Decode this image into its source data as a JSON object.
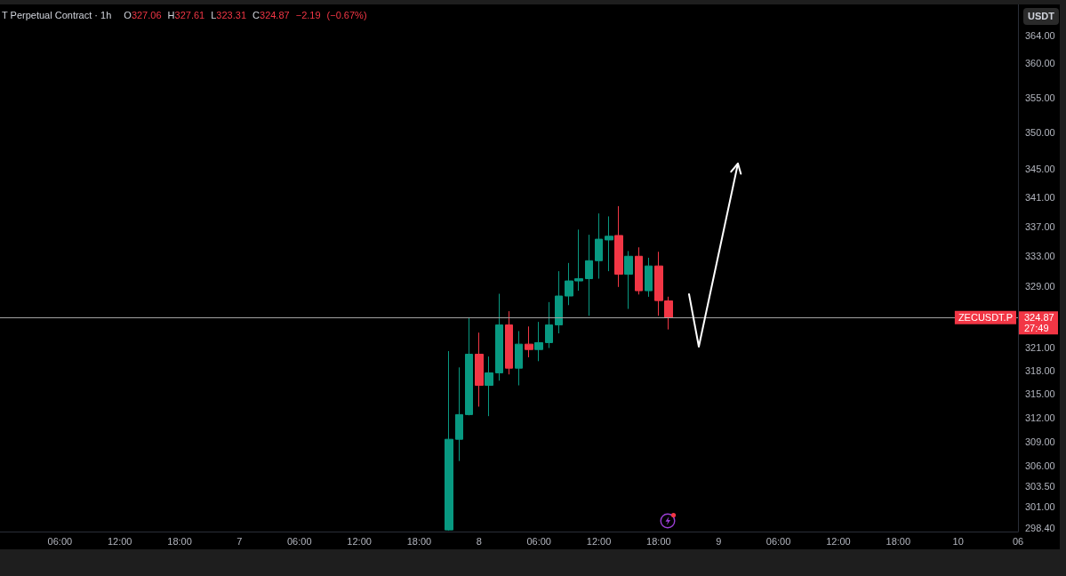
{
  "chart_data": {
    "type": "candlestick",
    "title": "T Perpetual Contract · 1h",
    "subtitle": "O327.06 H327.61 L323.31 C324.87 −2.19 (−0.67%)",
    "ylabel": "USDT",
    "x": [
      "--04-07T21:00",
      "--04-07T22:00",
      "--04-07T23:00",
      "--04-08T00:00",
      "--04-08T01:00",
      "--04-08T02:00",
      "--04-08T03:00",
      "--04-08T04:00",
      "--04-08T05:00",
      "--04-08T06:00",
      "--04-08T07:00",
      "--04-08T08:00",
      "--04-08T09:00",
      "--04-08T10:00",
      "--04-08T11:00",
      "--04-08T12:00",
      "--04-08T13:00",
      "--04-08T14:00",
      "--04-08T15:00",
      "--04-08T16:00",
      "--04-08T17:00",
      "--04-08T18:00",
      "--04-08T19:00"
    ],
    "ohlc": [
      [
        298.2,
        320.5,
        298.1,
        309.3
      ],
      [
        309.3,
        318.4,
        306.6,
        312.4
      ],
      [
        312.4,
        324.9,
        312.3,
        320.1
      ],
      [
        320.1,
        322.9,
        313.4,
        316.1
      ],
      [
        316.1,
        319.8,
        312.2,
        317.7
      ],
      [
        317.7,
        328.0,
        316.7,
        323.9
      ],
      [
        323.9,
        325.7,
        317.5,
        318.3
      ],
      [
        318.3,
        323.1,
        316.1,
        321.4
      ],
      [
        321.4,
        323.7,
        319.7,
        320.7
      ],
      [
        320.7,
        324.3,
        319.2,
        321.6
      ],
      [
        321.6,
        326.9,
        320.9,
        323.9
      ],
      [
        323.9,
        331.0,
        322.8,
        327.7
      ],
      [
        327.7,
        332.1,
        326.5,
        329.7
      ],
      [
        329.7,
        336.6,
        328.4,
        330.0
      ],
      [
        330.0,
        335.9,
        325.1,
        332.4
      ],
      [
        332.4,
        338.8,
        330.0,
        335.3
      ],
      [
        335.2,
        338.4,
        331.0,
        335.7
      ],
      [
        335.8,
        339.8,
        328.9,
        330.6
      ],
      [
        330.6,
        333.7,
        326.0,
        333.0
      ],
      [
        333.0,
        334.2,
        327.9,
        328.4
      ],
      [
        328.4,
        332.8,
        327.6,
        331.7
      ],
      [
        331.7,
        333.6,
        325.1,
        327.1
      ],
      [
        327.06,
        327.61,
        323.31,
        324.87
      ]
    ],
    "colors": [
      "#089981",
      "#089981",
      "#089981",
      "#f23645",
      "#089981",
      "#089981",
      "#f23645",
      "#089981",
      "#f23645",
      "#089981",
      "#089981",
      "#089981",
      "#089981",
      "#089981",
      "#089981",
      "#089981",
      "#089981",
      "#f23645",
      "#089981",
      "#f23645",
      "#089981",
      "#f23645",
      "#f23645"
    ],
    "xlim": [
      "--04-06T00:00",
      "--04-10T06:00"
    ],
    "xticks": [
      {
        "value": "--04-06T06:00",
        "label": "06:00"
      },
      {
        "value": "--04-06T12:00",
        "label": "12:00"
      },
      {
        "value": "--04-06T18:00",
        "label": "18:00"
      },
      {
        "value": "--04-07T00:00",
        "label": "7"
      },
      {
        "value": "--04-07T06:00",
        "label": "06:00"
      },
      {
        "value": "--04-07T12:00",
        "label": "12:00"
      },
      {
        "value": "--04-07T18:00",
        "label": "18:00"
      },
      {
        "value": "--04-08T00:00",
        "label": "8"
      },
      {
        "value": "--04-08T06:00",
        "label": "06:00"
      },
      {
        "value": "--04-08T12:00",
        "label": "12:00"
      },
      {
        "value": "--04-08T18:00",
        "label": "18:00"
      },
      {
        "value": "--04-09T00:00",
        "label": "9"
      },
      {
        "value": "--04-09T06:00",
        "label": "06:00"
      },
      {
        "value": "--04-09T12:00",
        "label": "12:00"
      },
      {
        "value": "--04-09T18:00",
        "label": "18:00"
      },
      {
        "value": "--04-10T00:00",
        "label": "10"
      },
      {
        "value": "--04-10T06:00",
        "label": "06"
      }
    ],
    "ylim": [
      298.0,
      368.6
    ],
    "yticks": [
      {
        "value": 298.4,
        "label": "298.40"
      },
      {
        "value": 301,
        "label": "301.00"
      },
      {
        "value": 303.5,
        "label": "303.50"
      },
      {
        "value": 306,
        "label": "306.00"
      },
      {
        "value": 309,
        "label": "309.00"
      },
      {
        "value": 312,
        "label": "312.00"
      },
      {
        "value": 315,
        "label": "315.00"
      },
      {
        "value": 318,
        "label": "318.00"
      },
      {
        "value": 321,
        "label": "321.00"
      },
      {
        "value": 329,
        "label": "329.00"
      },
      {
        "value": 333,
        "label": "333.00"
      },
      {
        "value": 337,
        "label": "337.00"
      },
      {
        "value": 341,
        "label": "341.00"
      },
      {
        "value": 345,
        "label": "345.00"
      },
      {
        "value": 350,
        "label": "350.00"
      },
      {
        "value": 355,
        "label": "355.00"
      },
      {
        "value": 360,
        "label": "360.00"
      },
      {
        "value": 364,
        "label": "364.00"
      }
    ],
    "log": true,
    "ref_lines": [
      {
        "axis": "y",
        "value": 324.87,
        "label": "ZECUSDT.P",
        "color": "#a3a3a3"
      }
    ],
    "annotations": [
      "324.87",
      "27:49"
    ]
  }
}
